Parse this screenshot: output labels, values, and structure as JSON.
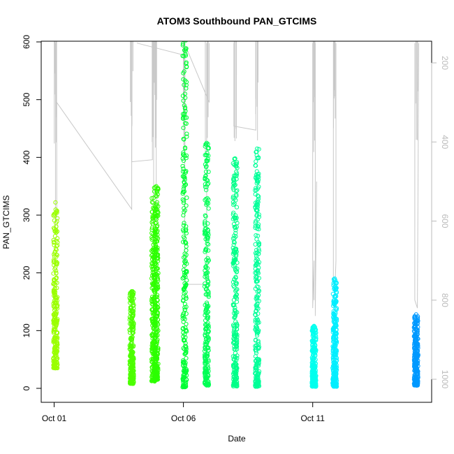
{
  "chart_data": {
    "type": "scatter",
    "title": "ATOM3 Southbound PAN_GTCIMS",
    "xlabel": "Date",
    "ylabel": "PAN_GTCIMS",
    "x_ticks": [
      "Oct 01",
      "Oct 06",
      "Oct 11"
    ],
    "x_tick_days": [
      1,
      6,
      11
    ],
    "xlim_days": [
      0.5,
      15.6
    ],
    "ylim": [
      0,
      690
    ],
    "y_ticks": [
      0,
      100,
      200,
      300,
      400,
      500,
      600
    ],
    "y2_ticks": [
      200,
      400,
      600,
      800,
      1000
    ],
    "y2_reversed": true,
    "y2_range": [
      150,
      1020
    ],
    "point_color_scale": "hue varies with date: yellow-green early, green, teal-green, cyan, then blue at end",
    "line_series_color": "#c8c8c8",
    "clusters": [
      {
        "day": 1.05,
        "min": 35,
        "max": 322,
        "color": "#9aff00"
      },
      {
        "day": 4.0,
        "min": 8,
        "max": 168,
        "color": "#4dff00"
      },
      {
        "day": 4.85,
        "min": 12,
        "max": 330,
        "color": "#33ff00"
      },
      {
        "day": 4.95,
        "min": 15,
        "max": 350,
        "color": "#2bff00"
      },
      {
        "day": 6.05,
        "min": 2,
        "max": 672,
        "color": "#00ff33"
      },
      {
        "day": 6.9,
        "min": 5,
        "max": 425,
        "color": "#00ff55"
      },
      {
        "day": 8.0,
        "min": 3,
        "max": 398,
        "color": "#00ff88"
      },
      {
        "day": 8.85,
        "min": 3,
        "max": 415,
        "color": "#00ff99"
      },
      {
        "day": 11.05,
        "min": 3,
        "max": 108,
        "color": "#00ffee"
      },
      {
        "day": 11.85,
        "min": 3,
        "max": 190,
        "color": "#00eeff"
      },
      {
        "day": 15.0,
        "min": 5,
        "max": 128,
        "color": "#0099ff"
      }
    ],
    "line_segments_y2": [
      [
        [
          1.05,
          150
        ],
        [
          1.05,
          320
        ],
        [
          1.05,
          630
        ]
      ],
      [
        [
          1.1,
          600
        ],
        [
          1.1,
          300
        ],
        [
          4.0,
          570
        ],
        [
          4.0,
          150
        ]
      ],
      [
        [
          4.0,
          150
        ],
        [
          4.0,
          450
        ],
        [
          4.8,
          445
        ],
        [
          4.8,
          150
        ]
      ],
      [
        [
          4.2,
          150
        ],
        [
          6.0,
          180
        ],
        [
          6.0,
          150
        ]
      ],
      [
        [
          4.85,
          650
        ],
        [
          4.85,
          150
        ]
      ],
      [
        [
          4.95,
          150
        ],
        [
          4.95,
          600
        ]
      ],
      [
        [
          6.05,
          150
        ],
        [
          6.05,
          760
        ],
        [
          6.9,
          760
        ],
        [
          6.9,
          150
        ]
      ],
      [
        [
          6.1,
          160
        ],
        [
          7.0,
          300
        ],
        [
          7.0,
          150
        ]
      ],
      [
        [
          7.95,
          150
        ],
        [
          7.95,
          360
        ],
        [
          8.8,
          370
        ],
        [
          8.8,
          150
        ]
      ],
      [
        [
          8.05,
          150
        ],
        [
          8.05,
          380
        ]
      ],
      [
        [
          11.0,
          150
        ],
        [
          11.0,
          820
        ],
        [
          11.05,
          700
        ],
        [
          11.05,
          800
        ]
      ],
      [
        [
          11.1,
          150
        ],
        [
          11.1,
          840
        ],
        [
          11.15,
          500
        ]
      ],
      [
        [
          11.8,
          150
        ],
        [
          11.8,
          740
        ],
        [
          11.85,
          790
        ],
        [
          11.9,
          700
        ],
        [
          11.9,
          150
        ]
      ],
      [
        [
          14.95,
          150
        ],
        [
          14.95,
          800
        ],
        [
          15.05,
          820
        ],
        [
          15.1,
          150
        ]
      ]
    ]
  }
}
